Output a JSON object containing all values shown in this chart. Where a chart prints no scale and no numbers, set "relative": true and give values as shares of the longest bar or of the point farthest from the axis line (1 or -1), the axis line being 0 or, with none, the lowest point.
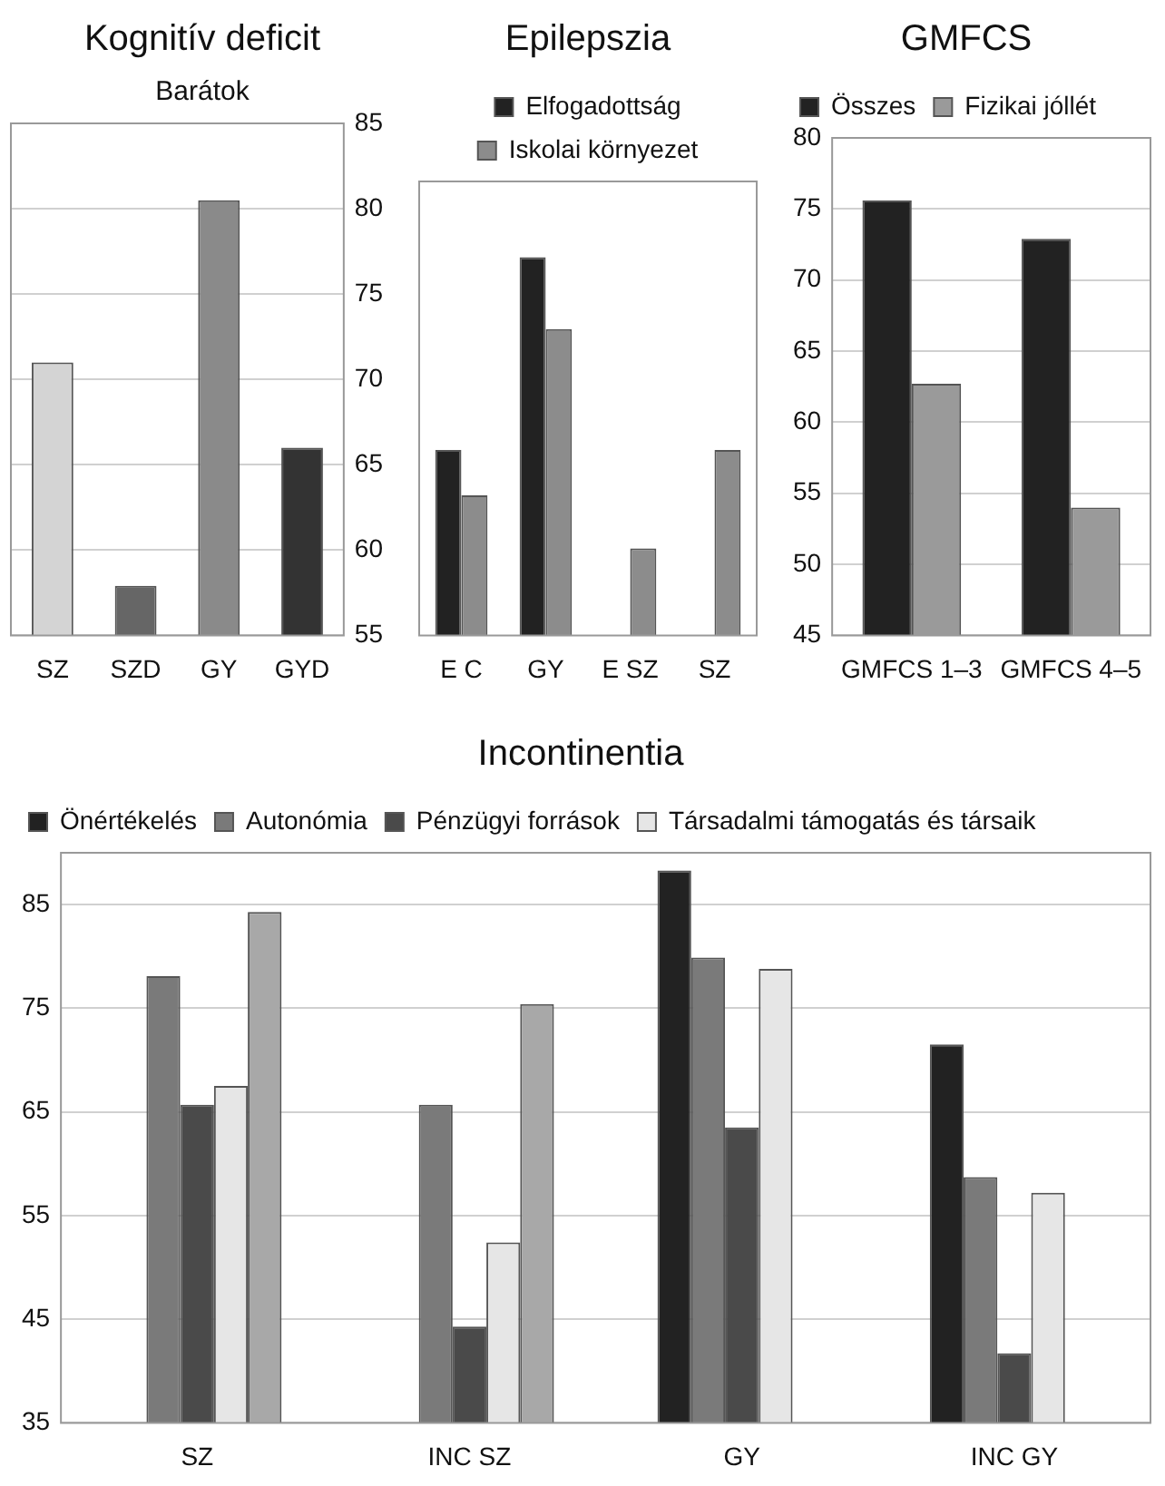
{
  "chart_data": [
    {
      "type": "bar",
      "title": "Kognitív deficit",
      "subtitle": "Barátok",
      "categories": [
        "SZ",
        "SZD",
        "GY",
        "GYD"
      ],
      "series": [
        {
          "colors": [
            "#d4d4d4",
            "#666666",
            "#8a8a8a",
            "#333333"
          ],
          "values": [
            71.0,
            57.9,
            80.5,
            66.0
          ],
          "axis": "y2"
        }
      ],
      "y2lim": [
        55,
        85
      ],
      "y2ticks": [
        55,
        60,
        65,
        70,
        75,
        80,
        85
      ],
      "grid": true
    },
    {
      "type": "bar",
      "title": "Epilepszia",
      "categories": [
        "E C",
        "GY",
        "E SZ",
        "SZ"
      ],
      "relative": true,
      "legend": "top",
      "series": [
        {
          "name": "Elfogadottság",
          "color": "#222222",
          "values": [
            0.49,
            1,
            null,
            null
          ]
        },
        {
          "name": "Iskolai környezet",
          "color": "#8c8c8c",
          "values": [
            0.37,
            0.81,
            0.23,
            0.49
          ]
        }
      ]
    },
    {
      "type": "bar",
      "title": "GMFCS",
      "categories": [
        "GMFCS 1–3",
        "GMFCS 4–5"
      ],
      "legend": "top left",
      "series": [
        {
          "name": "Összes",
          "color": "#222222",
          "values": [
            75.6,
            72.9
          ]
        },
        {
          "name": "Fizikai jóllét",
          "color": "#9a9a9a",
          "values": [
            62.7,
            54.0
          ]
        }
      ],
      "ylim": [
        45,
        80
      ],
      "yticks": [
        45,
        50,
        55,
        60,
        65,
        70,
        75,
        80
      ],
      "grid": true
    },
    {
      "type": "bar",
      "title": "Incontinentia",
      "categories": [
        "SZ",
        "INC SZ",
        "GY",
        "INC GY"
      ],
      "legend": "top left",
      "series": [
        {
          "name": "Önértékelés",
          "color": "#222222",
          "values": [
            null,
            null,
            88.3,
            71.5
          ]
        },
        {
          "name": "Autonómia",
          "color": "#7a7a7a",
          "values": [
            78.1,
            65.7,
            79.9,
            58.7
          ]
        },
        {
          "name": "Pénzügyi források",
          "color": "#4a4a4a",
          "values": [
            65.7,
            44.3,
            63.5,
            41.7
          ]
        },
        {
          "name": "Társadalmi támogatás és társaik",
          "color": "#e6e6e6",
          "values": [
            67.5,
            52.4,
            78.8,
            57.2
          ]
        },
        {
          "color": "#a8a8a8",
          "values": [
            84.3,
            75.4,
            null,
            null
          ]
        }
      ],
      "ylim": [
        35,
        90
      ],
      "yticks": [
        35,
        45,
        55,
        65,
        75,
        85
      ],
      "grid": true
    }
  ]
}
